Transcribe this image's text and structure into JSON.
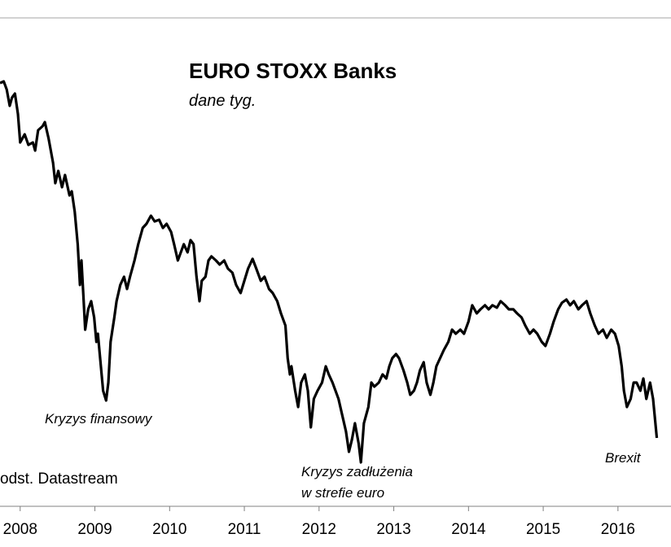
{
  "chart_data": {
    "type": "line",
    "title": "EURO STOXX Banks",
    "subtitle": "dane tyg.",
    "source": "odst. Datastream",
    "annotations": [
      "Kryzys finansowy",
      "Kryzys zadłużenia",
      "w strefie euro",
      "Brexit"
    ],
    "color": "#000000",
    "xlim": [
      2007.73,
      2016.71
    ],
    "ylim": [
      0,
      600
    ],
    "xticks": [
      2008,
      2009,
      2010,
      2011,
      2012,
      2013,
      2014,
      2015,
      2016
    ],
    "x": [
      2007.73,
      2007.78,
      2007.82,
      2007.86,
      2007.89,
      2007.93,
      2007.97,
      2008.0,
      2008.06,
      2008.11,
      2008.17,
      2008.2,
      2008.24,
      2008.3,
      2008.33,
      2008.38,
      2008.44,
      2008.47,
      2008.51,
      2008.56,
      2008.6,
      2008.66,
      2008.69,
      2008.73,
      2008.77,
      2008.8,
      2008.82,
      2008.85,
      2008.87,
      2008.91,
      2008.95,
      2008.99,
      2009.02,
      2009.04,
      2009.08,
      2009.11,
      2009.15,
      2009.18,
      2009.21,
      2009.26,
      2009.29,
      2009.34,
      2009.39,
      2009.43,
      2009.47,
      2009.53,
      2009.58,
      2009.64,
      2009.69,
      2009.75,
      2009.8,
      2009.86,
      2009.91,
      2009.96,
      2010.02,
      2010.06,
      2010.11,
      2010.15,
      2010.19,
      2010.24,
      2010.28,
      2010.32,
      2010.36,
      2010.4,
      2010.43,
      2010.48,
      2010.52,
      2010.56,
      2010.62,
      2010.67,
      2010.73,
      2010.78,
      2010.84,
      2010.89,
      2010.95,
      2011.0,
      2011.05,
      2011.11,
      2011.16,
      2011.22,
      2011.27,
      2011.33,
      2011.38,
      2011.44,
      2011.49,
      2011.55,
      2011.58,
      2011.61,
      2011.63,
      2011.68,
      2011.72,
      2011.76,
      2011.81,
      2011.85,
      2011.89,
      2011.93,
      2011.98,
      2012.04,
      2012.09,
      2012.13,
      2012.18,
      2012.22,
      2012.26,
      2012.31,
      2012.36,
      2012.4,
      2012.44,
      2012.48,
      2012.53,
      2012.56,
      2012.6,
      2012.66,
      2012.7,
      2012.74,
      2012.8,
      2012.85,
      2012.9,
      2012.94,
      2012.98,
      2013.03,
      2013.07,
      2013.13,
      2013.18,
      2013.22,
      2013.27,
      2013.31,
      2013.35,
      2013.4,
      2013.44,
      2013.49,
      2013.53,
      2013.57,
      2013.62,
      2013.67,
      2013.73,
      2013.78,
      2013.83,
      2013.89,
      2013.94,
      2014.0,
      2014.05,
      2014.11,
      2014.16,
      2014.22,
      2014.27,
      2014.32,
      2014.38,
      2014.43,
      2014.49,
      2014.54,
      2014.6,
      2014.65,
      2014.71,
      2014.76,
      2014.82,
      2014.87,
      2014.92,
      2014.98,
      2015.03,
      2015.09,
      2015.14,
      2015.2,
      2015.25,
      2015.31,
      2015.36,
      2015.41,
      2015.47,
      2015.52,
      2015.58,
      2015.63,
      2015.69,
      2015.74,
      2015.8,
      2015.85,
      2015.91,
      2015.96,
      2016.01,
      2016.05,
      2016.08,
      2016.12,
      2016.17,
      2016.21,
      2016.25,
      2016.3,
      2016.34,
      2016.38,
      2016.43,
      2016.47,
      2016.52
    ],
    "values": [
      520,
      522,
      512,
      492,
      502,
      507,
      482,
      447,
      457,
      444,
      447,
      437,
      462,
      467,
      472,
      452,
      422,
      397,
      412,
      392,
      407,
      382,
      387,
      362,
      322,
      272,
      302,
      252,
      217,
      242,
      252,
      232,
      202,
      212,
      172,
      142,
      130,
      152,
      202,
      232,
      252,
      272,
      282,
      267,
      282,
      302,
      322,
      342,
      347,
      357,
      350,
      352,
      342,
      347,
      337,
      322,
      302,
      312,
      322,
      312,
      327,
      322,
      282,
      252,
      277,
      282,
      302,
      307,
      302,
      297,
      302,
      292,
      287,
      272,
      262,
      277,
      292,
      304,
      292,
      277,
      282,
      267,
      262,
      252,
      237,
      222,
      182,
      162,
      172,
      142,
      122,
      152,
      162,
      142,
      97,
      132,
      142,
      152,
      172,
      162,
      152,
      142,
      132,
      112,
      92,
      67,
      82,
      102,
      77,
      54,
      102,
      122,
      152,
      147,
      152,
      162,
      157,
      172,
      182,
      187,
      182,
      167,
      152,
      137,
      142,
      152,
      167,
      177,
      152,
      137,
      152,
      172,
      182,
      192,
      202,
      217,
      212,
      217,
      212,
      227,
      247,
      237,
      242,
      247,
      242,
      247,
      244,
      252,
      247,
      242,
      242,
      237,
      232,
      222,
      212,
      217,
      212,
      202,
      197,
      212,
      227,
      242,
      250,
      254,
      247,
      252,
      242,
      247,
      252,
      237,
      222,
      212,
      217,
      207,
      217,
      212,
      197,
      172,
      142,
      122,
      132,
      152,
      152,
      142,
      157,
      132,
      152,
      132,
      84
    ]
  }
}
